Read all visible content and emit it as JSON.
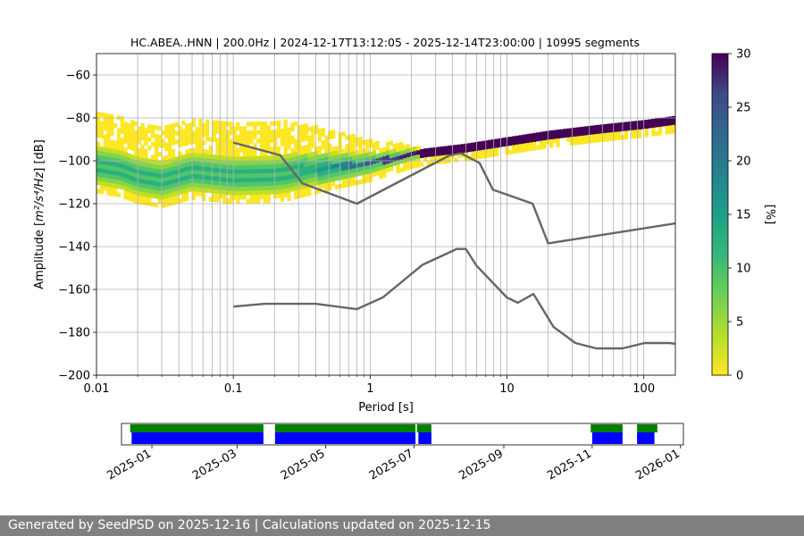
{
  "chart_data": {
    "type": "heatmap",
    "title": "HC.ABEA..HNN | 200.0Hz | 2024-12-17T13:12:05 - 2025-12-14T23:00:00 | 10995 segments",
    "xlabel": "Period [s]",
    "ylabel_main": "Amplitude [",
    "ylabel_unit": "m²/s⁴/Hz",
    "ylabel_end": "] [dB]",
    "x_scale": "log",
    "xlim": [
      0.01,
      170
    ],
    "ylim": [
      -200,
      -50
    ],
    "x_ticks": [
      {
        "value": 0.01,
        "label": "0.01"
      },
      {
        "value": 0.1,
        "label": "0.1"
      },
      {
        "value": 1,
        "label": "1"
      },
      {
        "value": 10,
        "label": "10"
      },
      {
        "value": 100,
        "label": "100"
      }
    ],
    "y_ticks": [
      {
        "value": -60,
        "label": "−60"
      },
      {
        "value": -80,
        "label": "−80"
      },
      {
        "value": -100,
        "label": "−100"
      },
      {
        "value": -120,
        "label": "−120"
      },
      {
        "value": -140,
        "label": "−140"
      },
      {
        "value": -160,
        "label": "−160"
      },
      {
        "value": -180,
        "label": "−180"
      },
      {
        "value": -200,
        "label": "−200"
      }
    ],
    "grid": true,
    "psd_mode_curve": [
      [
        0.01,
        -103
      ],
      [
        0.015,
        -105
      ],
      [
        0.02,
        -108
      ],
      [
        0.03,
        -110
      ],
      [
        0.05,
        -106
      ],
      [
        0.07,
        -107
      ],
      [
        0.1,
        -108
      ],
      [
        0.2,
        -107.5
      ],
      [
        0.5,
        -104
      ],
      [
        1,
        -102
      ],
      [
        2,
        -98
      ],
      [
        5,
        -95
      ],
      [
        10,
        -92
      ],
      [
        20,
        -89
      ],
      [
        50,
        -86
      ],
      [
        100,
        -84
      ],
      [
        170,
        -82
      ]
    ],
    "series": [
      {
        "name": "",
        "role": "high noise model",
        "color": "#666666",
        "points": [
          [
            0.1,
            -91.5
          ],
          [
            0.22,
            -97.4
          ],
          [
            0.32,
            -110.5
          ],
          [
            0.8,
            -120
          ],
          [
            3.8,
            -97.5
          ],
          [
            4.6,
            -96.5
          ],
          [
            6.3,
            -101
          ],
          [
            7.9,
            -113.5
          ],
          [
            15.4,
            -120
          ],
          [
            20,
            -138.5
          ],
          [
            354.8,
            -126
          ]
        ]
      },
      {
        "name": "",
        "role": "low noise model",
        "color": "#666666",
        "points": [
          [
            0.1,
            -168
          ],
          [
            0.17,
            -166.7
          ],
          [
            0.4,
            -166.7
          ],
          [
            0.8,
            -169.2
          ],
          [
            1.24,
            -163.7
          ],
          [
            2.4,
            -148.6
          ],
          [
            4.3,
            -141.1
          ],
          [
            5,
            -141.1
          ],
          [
            6,
            -149
          ],
          [
            10,
            -163.8
          ],
          [
            12,
            -166.2
          ],
          [
            15.6,
            -162.1
          ],
          [
            21.9,
            -177.5
          ],
          [
            31.6,
            -185
          ],
          [
            45,
            -187.5
          ],
          [
            70,
            -187.5
          ],
          [
            101,
            -185
          ],
          [
            154,
            -185
          ],
          [
            328,
            -187.5
          ]
        ]
      }
    ],
    "colorbar": {
      "label": "[%]",
      "colormap": "viridis_r",
      "range": [
        0,
        30
      ],
      "ticks": [
        {
          "value": 0,
          "label": "0"
        },
        {
          "value": 5,
          "label": "5"
        },
        {
          "value": 10,
          "label": "10"
        },
        {
          "value": 15,
          "label": "15"
        },
        {
          "value": 20,
          "label": "20"
        },
        {
          "value": 25,
          "label": "25"
        },
        {
          "value": 30,
          "label": "30"
        }
      ]
    },
    "timeline": {
      "date_ticks": [
        {
          "date": "2025-01-01",
          "label": "2025-01"
        },
        {
          "date": "2025-03-01",
          "label": "2025-03"
        },
        {
          "date": "2025-05-01",
          "label": "2025-05"
        },
        {
          "date": "2025-07-01",
          "label": "2025-07"
        },
        {
          "date": "2025-09-01",
          "label": "2025-09"
        },
        {
          "date": "2025-11-01",
          "label": "2025-11"
        },
        {
          "date": "2026-01-01",
          "label": "2026-01"
        }
      ],
      "range": [
        "2024-12-11",
        "2026-01-03"
      ],
      "available_data": [
        [
          "2024-12-17",
          "2025-03-19"
        ],
        [
          "2025-03-27",
          "2025-07-02"
        ],
        [
          "2025-07-03",
          "2025-07-13"
        ],
        [
          "2025-10-31",
          "2025-11-22"
        ],
        [
          "2025-12-02",
          "2025-12-16"
        ]
      ],
      "used_data": [
        [
          "2024-12-18",
          "2025-03-19"
        ],
        [
          "2025-03-27",
          "2025-07-02"
        ],
        [
          "2025-07-04",
          "2025-07-13"
        ],
        [
          "2025-11-01",
          "2025-11-22"
        ],
        [
          "2025-12-02",
          "2025-12-14"
        ]
      ],
      "colors": {
        "available": "#008000",
        "used": "#0000ff"
      }
    }
  },
  "footer": {
    "text": "Generated by SeedPSD on 2025-12-16 | Calculations updated on 2025-12-15"
  }
}
